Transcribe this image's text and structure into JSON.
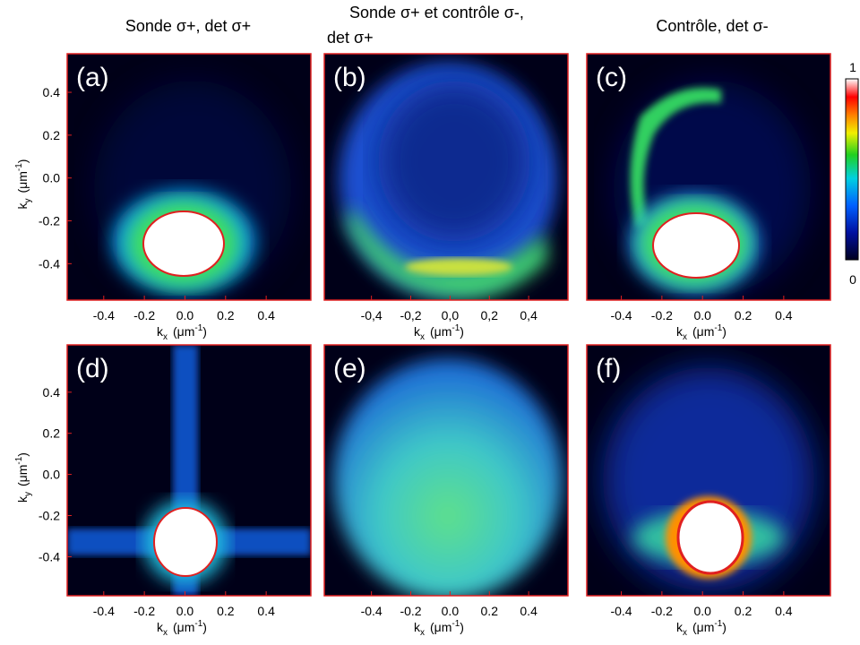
{
  "chart_data": [
    {
      "type": "heatmap",
      "title": [
        "Sonde σ+, det σ+"
      ],
      "panel": "(a)",
      "xlim": [
        -0.58,
        0.62
      ],
      "ylim": [
        -0.57,
        0.58
      ],
      "xticks": [
        -0.4,
        -0.2,
        {
          "value": 0,
          "label": "0.0"
        },
        0.2,
        0.4
      ],
      "yticks": [
        -0.4,
        -0.2,
        {
          "value": 0,
          "label": "0.0"
        },
        0.2,
        0.4
      ],
      "xlabel": {
        "symbol": "k",
        "subscript": "x",
        "unit": "(μm",
        "exponent": "-1",
        "close": ")"
      },
      "ylabel": {
        "symbol": "k",
        "subscript": "y",
        "unit": "(μm",
        "exponent": "-1",
        "close": ")"
      }
    },
    {
      "type": "heatmap",
      "title": [
        "Sonde σ+ et contrôle σ-,",
        "det σ+"
      ],
      "panel": "(b)",
      "xlim": [
        -0.64,
        0.6
      ],
      "ylim": [
        -0.57,
        0.58
      ],
      "xticks": [
        {
          "value": -0.4,
          "label": "-0,4"
        },
        {
          "value": -0.2,
          "label": "-0,2"
        },
        {
          "value": 0,
          "label": "0,0"
        },
        {
          "value": 0.2,
          "label": "0,2"
        },
        {
          "value": 0.4,
          "label": "0,4"
        }
      ],
      "xlabel": {
        "symbol": "k",
        "subscript": "x",
        "unit": "(μm",
        "exponent": "-1",
        "close": ")"
      }
    },
    {
      "type": "heatmap",
      "title": [
        "Contrôle, det σ-"
      ],
      "panel": "(c)",
      "xlim": [
        -0.57,
        0.63
      ],
      "ylim": [
        -0.57,
        0.58
      ],
      "xticks": [
        -0.4,
        -0.2,
        {
          "value": 0,
          "label": "0.0"
        },
        0.2,
        0.4
      ],
      "xlabel": {
        "symbol": "k",
        "subscript": "x",
        "unit": "(μm",
        "exponent": "-1",
        "close": ")"
      }
    },
    {
      "type": "heatmap",
      "panel": "(d)",
      "xlim": [
        -0.58,
        0.62
      ],
      "ylim": [
        -0.59,
        0.63
      ],
      "xticks": [
        -0.4,
        -0.2,
        {
          "value": 0,
          "label": "0.0"
        },
        0.2,
        0.4
      ],
      "yticks": [
        -0.4,
        -0.2,
        {
          "value": 0,
          "label": "0.0"
        },
        0.2,
        0.4
      ],
      "xlabel": {
        "symbol": "k",
        "subscript": "x",
        "unit": "(μm",
        "exponent": "-1",
        "close": ")"
      },
      "ylabel": {
        "symbol": "k",
        "subscript": "y",
        "unit": "(μm",
        "exponent": "-1",
        "close": ")"
      }
    },
    {
      "type": "heatmap",
      "panel": "(e)",
      "xlim": [
        -0.64,
        0.6
      ],
      "ylim": [
        -0.59,
        0.63
      ],
      "xticks": [
        -0.4,
        -0.2,
        {
          "value": 0,
          "label": "0.0"
        },
        0.2,
        0.4
      ],
      "xlabel": {
        "symbol": "k",
        "subscript": "x",
        "unit": "(μm",
        "exponent": "-1",
        "close": ")"
      }
    },
    {
      "type": "heatmap",
      "panel": "(f)",
      "xlim": [
        -0.57,
        0.63
      ],
      "ylim": [
        -0.59,
        0.63
      ],
      "xticks": [
        -0.4,
        -0.2,
        {
          "value": 0,
          "label": "0.0"
        },
        0.2,
        0.4
      ],
      "xlabel": {
        "symbol": "k",
        "subscript": "x",
        "unit": "(μm",
        "exponent": "-1",
        "close": ")"
      }
    }
  ],
  "colorbar": {
    "ticks": [
      0,
      1
    ]
  }
}
